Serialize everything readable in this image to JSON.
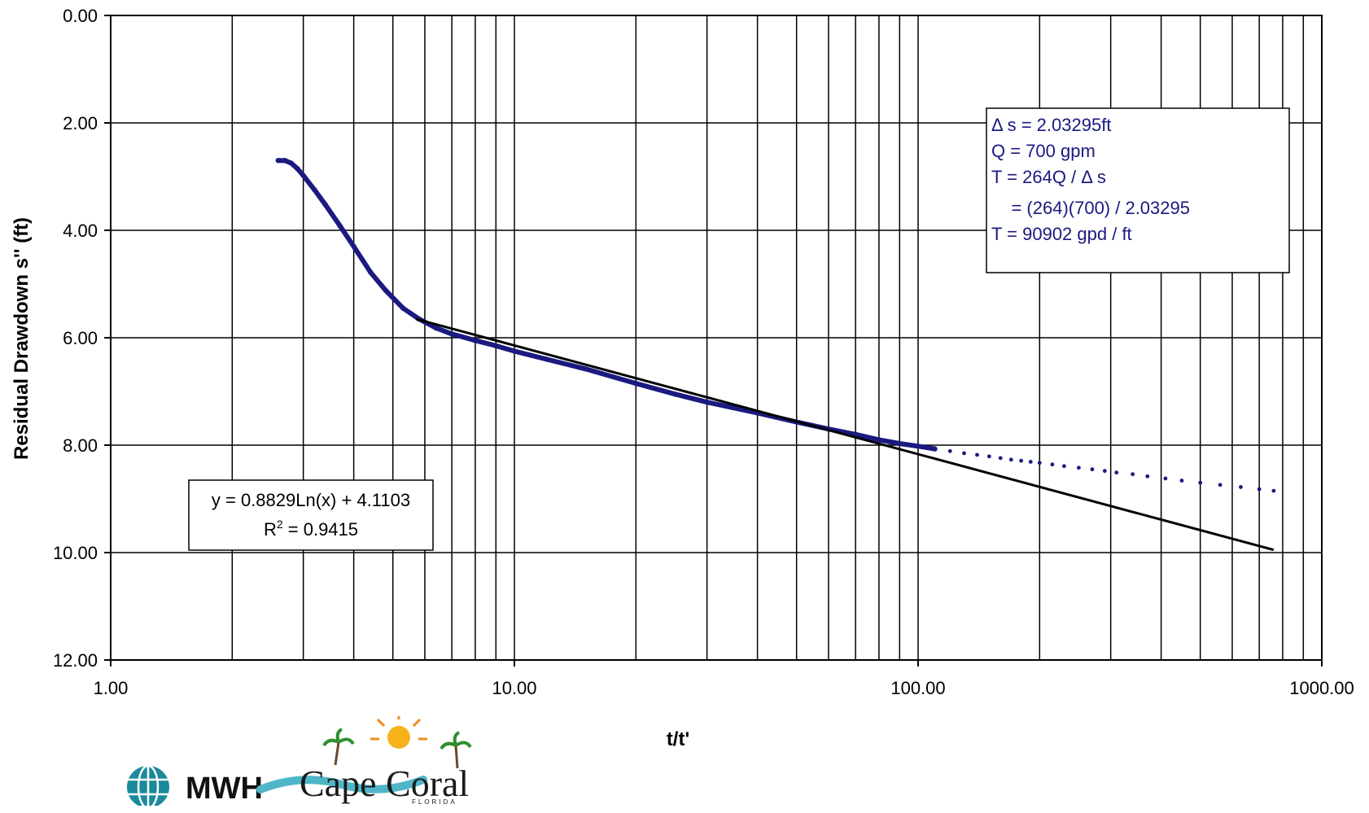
{
  "chart_data": {
    "type": "scatter",
    "xlabel": "t/t'",
    "ylabel": "Residual Drawdown s'' (ft)",
    "x_scale": "log",
    "xlim": [
      1,
      1000
    ],
    "ylim": [
      12,
      0
    ],
    "y_inverted": true,
    "grid": true,
    "x_ticks": [
      "1.00",
      "10.00",
      "100.00",
      "1000.00"
    ],
    "y_ticks": [
      "0.00",
      "2.00",
      "4.00",
      "6.00",
      "8.00",
      "10.00",
      "12.00"
    ],
    "series": [
      {
        "kind": "points",
        "color": "#1a1a80",
        "x": [
          2.6,
          2.7,
          2.8,
          2.9,
          3.0,
          3.2,
          3.4,
          3.7,
          4.0,
          4.4,
          4.8,
          5.3,
          5.8,
          6.4,
          7.0,
          8.0,
          9.0,
          10.0,
          12.0,
          15.0,
          20.0,
          25.0,
          30.0,
          40.0,
          50.0,
          60.0,
          70.0,
          80.0,
          90.0,
          100.0,
          110.0,
          120.0,
          130.0,
          140.0,
          150.0,
          160.0,
          170.0,
          180.0,
          190.0,
          200.0,
          215.0,
          230.0,
          250.0,
          270.0,
          290.0,
          310.0,
          340.0,
          370.0,
          410.0,
          450.0,
          500.0,
          560.0,
          630.0,
          700.0,
          760.0
        ],
        "y": [
          2.7,
          2.7,
          2.75,
          2.85,
          2.98,
          3.25,
          3.52,
          3.92,
          4.3,
          4.78,
          5.12,
          5.45,
          5.65,
          5.82,
          5.93,
          6.05,
          6.15,
          6.25,
          6.4,
          6.58,
          6.85,
          7.05,
          7.2,
          7.4,
          7.57,
          7.7,
          7.8,
          7.9,
          7.97,
          8.02,
          8.07,
          8.11,
          8.15,
          8.18,
          8.21,
          8.24,
          8.27,
          8.29,
          8.31,
          8.33,
          8.36,
          8.39,
          8.42,
          8.45,
          8.48,
          8.51,
          8.54,
          8.58,
          8.62,
          8.66,
          8.7,
          8.74,
          8.78,
          8.82,
          8.85
        ]
      },
      {
        "kind": "trendline",
        "color": "#000000",
        "x_range": [
          5.7,
          760
        ],
        "y_range": [
          5.65,
          9.95
        ]
      }
    ],
    "trendline_label": {
      "equation": "y = 0.8829Ln(x) + 4.1103",
      "r2": "R",
      "r2_sup": "2",
      "r2_value": " = 0.9415"
    },
    "annotation": {
      "lines": [
        "Δ s = 2.03295ft",
        "Q = 700 gpm",
        "T = 264Q / Δ s",
        "    = (264)(700) / 2.03295",
        "T = 90902 gpd / ft"
      ],
      "color": "#1a1a80"
    }
  },
  "logos": {
    "mwh": "MWH",
    "cape_coral": "Cape Coral",
    "cape_coral_sub": "FLORIDA"
  },
  "colors": {
    "data": "#1a1a80",
    "trend": "#000000",
    "grid": "#000000",
    "mwh_teal": "#1b8a9a"
  }
}
